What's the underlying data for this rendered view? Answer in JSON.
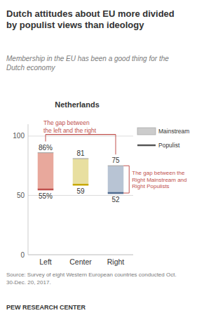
{
  "chart_data": {
    "type": "bar",
    "title": "Dutch attitudes about EU more divided\nby populist views than ideology",
    "subtitle": "Membership in the EU has been a good thing for the\nDutch economy",
    "panel_title": "Netherlands",
    "categories": [
      "Left",
      "Center",
      "Right"
    ],
    "series": [
      {
        "name": "Mainstream",
        "color": "#cccccc",
        "colors": [
          "#e8a89c",
          "#e8dfa0",
          "#b8c4d4"
        ],
        "values": [
          86,
          81,
          75
        ],
        "value_labels": [
          "86%",
          "81",
          "75"
        ]
      },
      {
        "name": "Populist",
        "color": "#555555",
        "colors": [
          "#c0504d",
          "#c8a800",
          "#4f6a8f"
        ],
        "values": [
          55,
          59,
          52
        ],
        "value_labels": [
          "55%",
          "59",
          "52"
        ]
      }
    ],
    "ylim": [
      0,
      110
    ],
    "yticks": [
      0,
      50,
      100
    ],
    "grid": true,
    "legend": "right",
    "data_labels": true,
    "annotations": [
      {
        "text": "The gap between\nthe left and the right",
        "color": "#c0504d"
      },
      {
        "text": "The gap between the\nRight Mainstream and\nRight Populists",
        "color": "#c0504d"
      }
    ],
    "source": "Source: Survey of eight Western European countries conducted Oct.\n30-Dec. 20, 2017.",
    "footer": "PEW RESEARCH CENTER"
  }
}
